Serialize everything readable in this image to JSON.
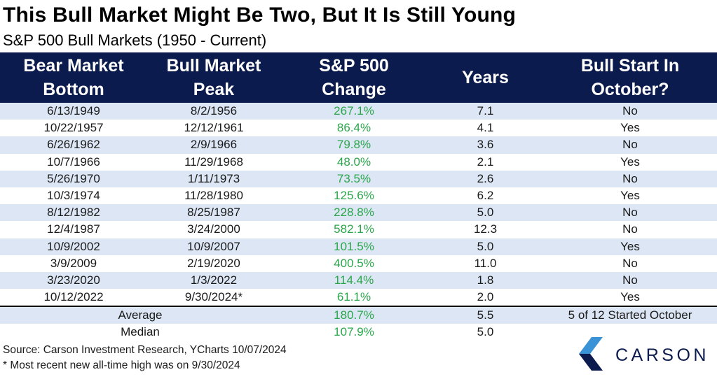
{
  "title": "This Bull Market Might Be Two, But It Is Still Young",
  "subtitle": "S&P 500 Bull Markets (1950 - Current)",
  "colors": {
    "header_bg": "#0c1b4d",
    "stripe_bg": "#dce6f4",
    "change_text": "#2aa64a",
    "logo_navy": "#0c1b4d",
    "logo_blue": "#3a93d6"
  },
  "table": {
    "headers": {
      "col1": {
        "line1": "Bear Market",
        "line2": "Bottom"
      },
      "col2": {
        "line1": "Bull Market",
        "line2": "Peak"
      },
      "col3": {
        "line1": "S&P 500",
        "line2": "Change"
      },
      "col4": {
        "line1": "Years"
      },
      "col5": {
        "line1": "Bull Start In",
        "line2": "October?"
      }
    },
    "rows": [
      {
        "bottom": "6/13/1949",
        "peak": "8/2/1956",
        "change": "267.1%",
        "years": "7.1",
        "october": "No"
      },
      {
        "bottom": "10/22/1957",
        "peak": "12/12/1961",
        "change": "86.4%",
        "years": "4.1",
        "october": "Yes"
      },
      {
        "bottom": "6/26/1962",
        "peak": "2/9/1966",
        "change": "79.8%",
        "years": "3.6",
        "october": "No"
      },
      {
        "bottom": "10/7/1966",
        "peak": "11/29/1968",
        "change": "48.0%",
        "years": "2.1",
        "october": "Yes"
      },
      {
        "bottom": "5/26/1970",
        "peak": "1/11/1973",
        "change": "73.5%",
        "years": "2.6",
        "october": "No"
      },
      {
        "bottom": "10/3/1974",
        "peak": "11/28/1980",
        "change": "125.6%",
        "years": "6.2",
        "october": "Yes"
      },
      {
        "bottom": "8/12/1982",
        "peak": "8/25/1987",
        "change": "228.8%",
        "years": "5.0",
        "october": "No"
      },
      {
        "bottom": "12/4/1987",
        "peak": "3/24/2000",
        "change": "582.1%",
        "years": "12.3",
        "october": "No"
      },
      {
        "bottom": "10/9/2002",
        "peak": "10/9/2007",
        "change": "101.5%",
        "years": "5.0",
        "october": "Yes"
      },
      {
        "bottom": "3/9/2009",
        "peak": "2/19/2020",
        "change": "400.5%",
        "years": "11.0",
        "october": "No"
      },
      {
        "bottom": "3/23/2020",
        "peak": "1/3/2022",
        "change": "114.4%",
        "years": "1.8",
        "october": "No"
      },
      {
        "bottom": "10/12/2022",
        "peak": "9/30/2024*",
        "change": "61.1%",
        "years": "2.0",
        "october": "Yes"
      }
    ],
    "summary": {
      "average": {
        "label": "Average",
        "change": "180.7%",
        "years": "5.5",
        "october": "5 of 12 Started October"
      },
      "median": {
        "label": "Median",
        "change": "107.9%",
        "years": "5.0",
        "october": ""
      }
    }
  },
  "source": "Source: Carson Investment Research, YCharts 10/07/2024",
  "footnote": "* Most recent new all-time high was on 9/30/2024",
  "logo": {
    "wordmark": "CARSON",
    "icon": "carson-chevron-icon"
  }
}
